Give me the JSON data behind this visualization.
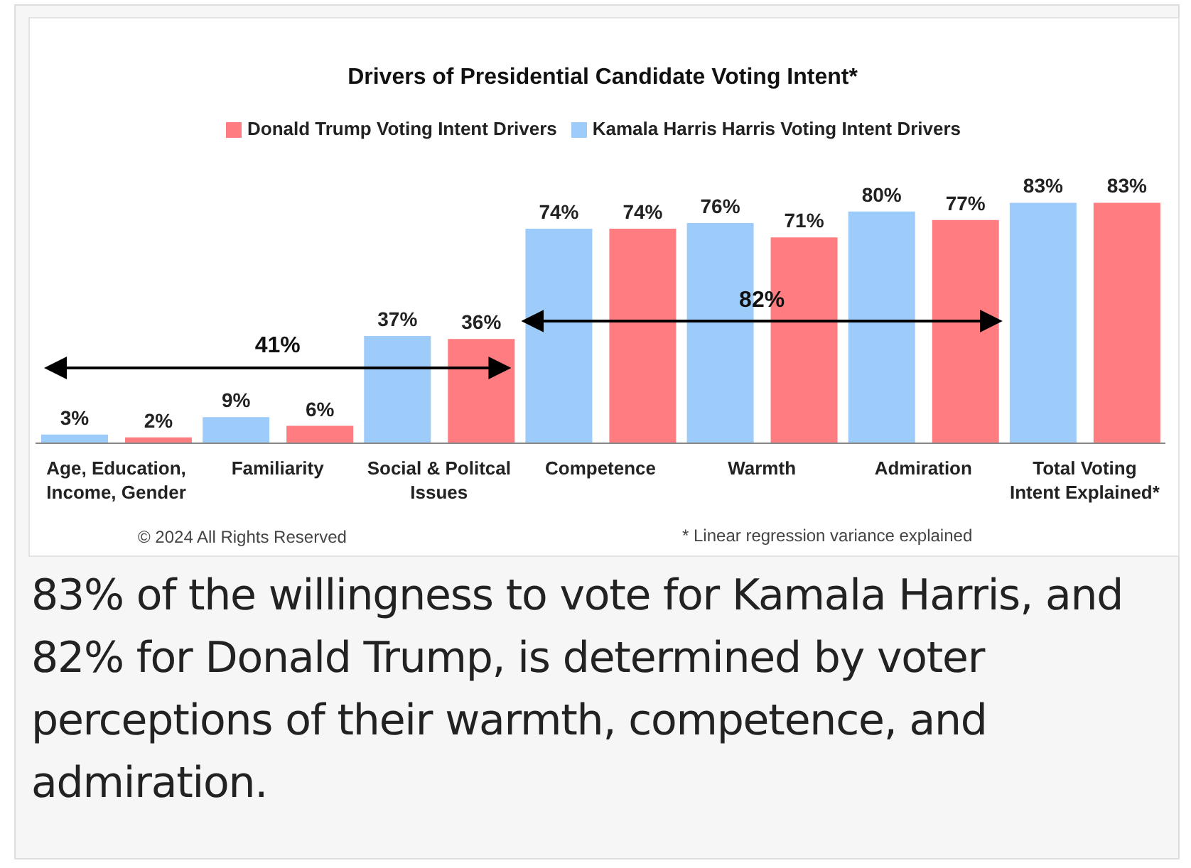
{
  "chart_data": {
    "type": "bar",
    "title": "Drivers of Presidential Candidate Voting Intent*",
    "categories": [
      "Age, Education, Income, Gender",
      "Familiarity",
      "Social & Politcal Issues",
      "Competence",
      "Warmth",
      "Admiration",
      "Total Voting Intent Explained*"
    ],
    "series": [
      {
        "name": "Kamala Harris Harris Voting Intent Drivers",
        "color": "#9dcbfa",
        "values": [
          3,
          9,
          37,
          74,
          76,
          80,
          83
        ],
        "value_labels": [
          "3%",
          "9%",
          "37%",
          "74%",
          "76%",
          "80%",
          "83%"
        ]
      },
      {
        "name": "Donald Trump Voting Intent Drivers",
        "color": "#ff7c80",
        "values": [
          2,
          6,
          36,
          74,
          71,
          77,
          83
        ],
        "value_labels": [
          "2%",
          "6%",
          "36%",
          "74%",
          "71%",
          "77%",
          "83%"
        ]
      }
    ],
    "legend": "top",
    "grid": false,
    "annotations": [
      "41%",
      "82%",
      "© 2024 All Rights Reserved",
      "* Linear regression variance explained",
      "83% of the willingness to vote for Kamala Harris, and 82% for Donald Trump, is determined by voter perceptions of their warmth, competence, and admiration."
    ]
  }
}
